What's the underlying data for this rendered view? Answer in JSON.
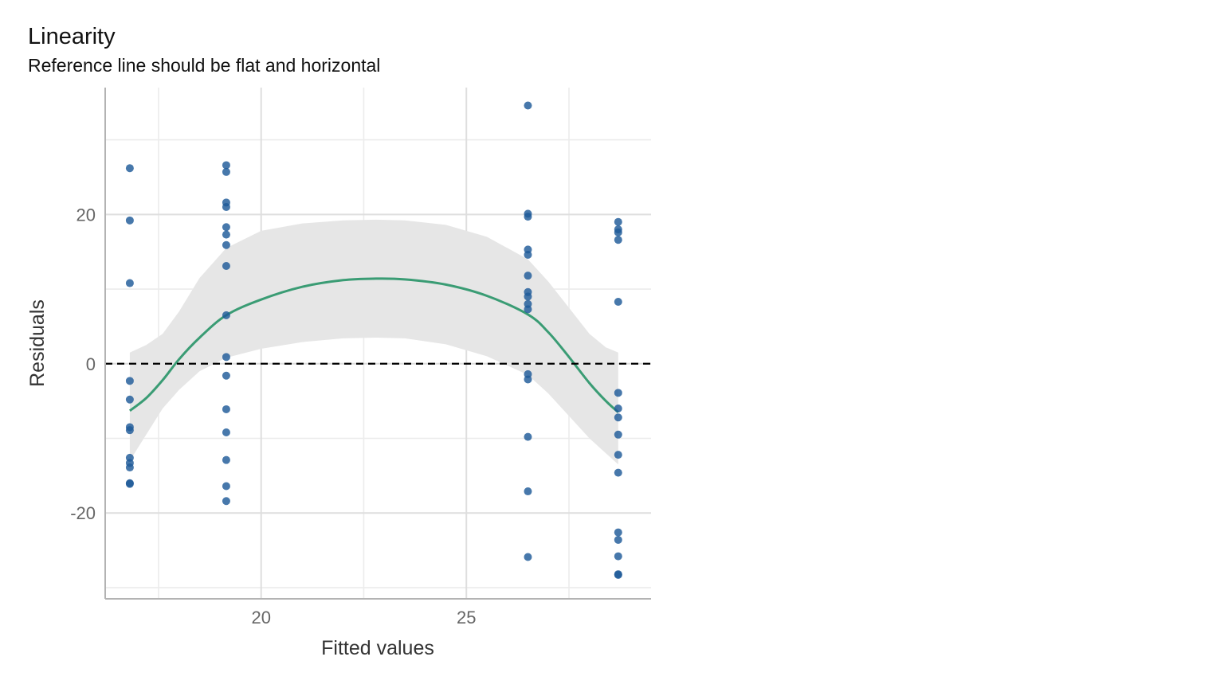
{
  "chart_data": {
    "type": "scatter",
    "title": "Linearity",
    "subtitle": "Reference line should be flat and horizontal",
    "xlabel": "Fitted values",
    "ylabel": "Residuals",
    "xlim": [
      16.2,
      29.5
    ],
    "ylim": [
      -31.5,
      37
    ],
    "x_ticks": [
      20,
      25
    ],
    "y_ticks": [
      -20,
      0,
      20
    ],
    "grid": true,
    "reference_line": {
      "y": 0,
      "style": "dashed",
      "color": "#000000"
    },
    "point_color": "#1F5A99",
    "smooth_color": "#3A9C74",
    "band_color": "#E6E6E6",
    "points": [
      {
        "x": 16.8,
        "y": 26.2
      },
      {
        "x": 16.8,
        "y": 19.2
      },
      {
        "x": 16.8,
        "y": 10.8
      },
      {
        "x": 16.8,
        "y": -2.3
      },
      {
        "x": 16.8,
        "y": -4.8
      },
      {
        "x": 16.8,
        "y": -8.5
      },
      {
        "x": 16.8,
        "y": -8.9
      },
      {
        "x": 16.8,
        "y": -12.6
      },
      {
        "x": 16.8,
        "y": -13.3
      },
      {
        "x": 16.8,
        "y": -13.9
      },
      {
        "x": 16.8,
        "y": -16.0
      },
      {
        "x": 16.8,
        "y": -16.1
      },
      {
        "x": 19.15,
        "y": 26.6
      },
      {
        "x": 19.15,
        "y": 25.7
      },
      {
        "x": 19.15,
        "y": 21.6
      },
      {
        "x": 19.15,
        "y": 21.0
      },
      {
        "x": 19.15,
        "y": 18.3
      },
      {
        "x": 19.15,
        "y": 17.3
      },
      {
        "x": 19.15,
        "y": 15.9
      },
      {
        "x": 19.15,
        "y": 13.1
      },
      {
        "x": 19.15,
        "y": 6.5
      },
      {
        "x": 19.15,
        "y": 0.9
      },
      {
        "x": 19.15,
        "y": -1.6
      },
      {
        "x": 19.15,
        "y": -6.1
      },
      {
        "x": 19.15,
        "y": -9.2
      },
      {
        "x": 19.15,
        "y": -12.9
      },
      {
        "x": 19.15,
        "y": -16.4
      },
      {
        "x": 19.15,
        "y": -18.4
      },
      {
        "x": 26.5,
        "y": 34.6
      },
      {
        "x": 26.5,
        "y": 20.1
      },
      {
        "x": 26.5,
        "y": 19.7
      },
      {
        "x": 26.5,
        "y": 15.3
      },
      {
        "x": 26.5,
        "y": 14.6
      },
      {
        "x": 26.5,
        "y": 11.8
      },
      {
        "x": 26.5,
        "y": 9.6
      },
      {
        "x": 26.5,
        "y": 9.0
      },
      {
        "x": 26.5,
        "y": 8.0
      },
      {
        "x": 26.5,
        "y": 7.3
      },
      {
        "x": 26.5,
        "y": -1.4
      },
      {
        "x": 26.5,
        "y": -2.1
      },
      {
        "x": 26.5,
        "y": -9.8
      },
      {
        "x": 26.5,
        "y": -17.1
      },
      {
        "x": 26.5,
        "y": -25.9
      },
      {
        "x": 28.7,
        "y": 19.0
      },
      {
        "x": 28.7,
        "y": 18.0
      },
      {
        "x": 28.7,
        "y": 17.6
      },
      {
        "x": 28.7,
        "y": 16.6
      },
      {
        "x": 28.7,
        "y": 8.3
      },
      {
        "x": 28.7,
        "y": -3.9
      },
      {
        "x": 28.7,
        "y": -6.0
      },
      {
        "x": 28.7,
        "y": -7.2
      },
      {
        "x": 28.7,
        "y": -9.5
      },
      {
        "x": 28.7,
        "y": -12.2
      },
      {
        "x": 28.7,
        "y": -14.6
      },
      {
        "x": 28.7,
        "y": -22.6
      },
      {
        "x": 28.7,
        "y": -23.6
      },
      {
        "x": 28.7,
        "y": -25.8
      },
      {
        "x": 28.7,
        "y": -28.2
      },
      {
        "x": 28.7,
        "y": -28.3
      }
    ],
    "smooth_line": [
      {
        "x": 16.8,
        "y": -6.3
      },
      {
        "x": 17.2,
        "y": -4.6
      },
      {
        "x": 17.6,
        "y": -2.2
      },
      {
        "x": 18.0,
        "y": 0.6
      },
      {
        "x": 18.5,
        "y": 3.5
      },
      {
        "x": 19.15,
        "y": 6.5
      },
      {
        "x": 20.0,
        "y": 8.6
      },
      {
        "x": 21.0,
        "y": 10.3
      },
      {
        "x": 22.0,
        "y": 11.2
      },
      {
        "x": 22.8,
        "y": 11.4
      },
      {
        "x": 23.5,
        "y": 11.3
      },
      {
        "x": 24.5,
        "y": 10.6
      },
      {
        "x": 25.5,
        "y": 9.1
      },
      {
        "x": 26.5,
        "y": 6.6
      },
      {
        "x": 27.0,
        "y": 4.2
      },
      {
        "x": 27.5,
        "y": 0.9
      },
      {
        "x": 28.0,
        "y": -2.6
      },
      {
        "x": 28.4,
        "y": -5.0
      },
      {
        "x": 28.7,
        "y": -6.5
      }
    ],
    "confidence_band": [
      {
        "x": 16.8,
        "lo": -13.0,
        "hi": 1.5
      },
      {
        "x": 17.2,
        "lo": -9.5,
        "hi": 2.5
      },
      {
        "x": 17.6,
        "lo": -6.0,
        "hi": 4.0
      },
      {
        "x": 18.0,
        "lo": -3.5,
        "hi": 7.0
      },
      {
        "x": 18.5,
        "lo": -1.0,
        "hi": 11.5
      },
      {
        "x": 19.15,
        "lo": 0.8,
        "hi": 15.5
      },
      {
        "x": 20.0,
        "lo": 2.0,
        "hi": 17.8
      },
      {
        "x": 21.0,
        "lo": 2.9,
        "hi": 18.8
      },
      {
        "x": 22.0,
        "lo": 3.4,
        "hi": 19.2
      },
      {
        "x": 22.8,
        "lo": 3.5,
        "hi": 19.3
      },
      {
        "x": 23.5,
        "lo": 3.4,
        "hi": 19.2
      },
      {
        "x": 24.5,
        "lo": 2.6,
        "hi": 18.6
      },
      {
        "x": 25.5,
        "lo": 1.0,
        "hi": 17.0
      },
      {
        "x": 26.5,
        "lo": -1.5,
        "hi": 14.0
      },
      {
        "x": 27.0,
        "lo": -4.0,
        "hi": 11.0
      },
      {
        "x": 27.5,
        "lo": -7.0,
        "hi": 7.5
      },
      {
        "x": 28.0,
        "lo": -10.0,
        "hi": 4.0
      },
      {
        "x": 28.4,
        "lo": -12.0,
        "hi": 2.2
      },
      {
        "x": 28.7,
        "lo": -13.5,
        "hi": 1.5
      }
    ]
  }
}
